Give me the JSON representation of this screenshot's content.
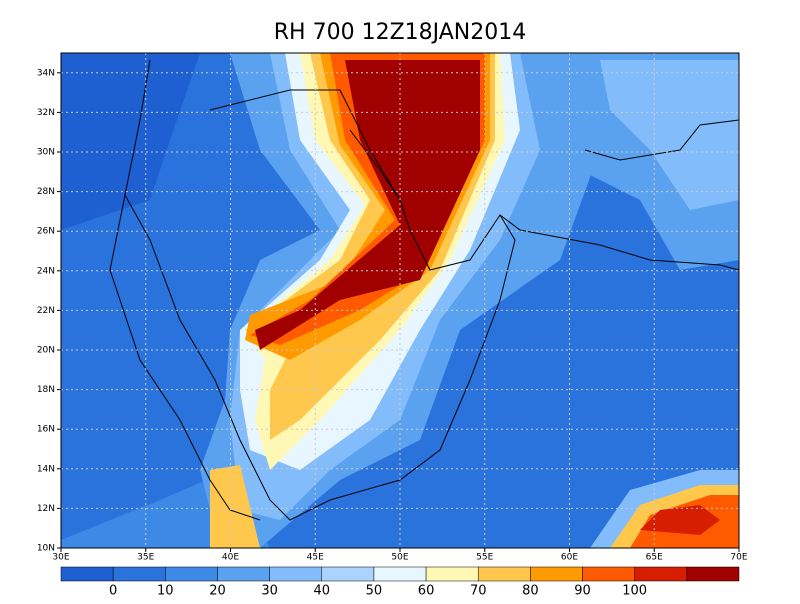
{
  "title": "RH 700 12Z18JAN2014",
  "map": {
    "xlim": [
      30,
      70
    ],
    "ylim": [
      10,
      35
    ],
    "xticks": [
      {
        "value": 30,
        "label": "30E"
      },
      {
        "value": 35,
        "label": "35E"
      },
      {
        "value": 40,
        "label": "40E"
      },
      {
        "value": 45,
        "label": "45E"
      },
      {
        "value": 50,
        "label": "50E"
      },
      {
        "value": 55,
        "label": "55E"
      },
      {
        "value": 60,
        "label": "60E"
      },
      {
        "value": 65,
        "label": "65E"
      },
      {
        "value": 70,
        "label": "70E"
      }
    ],
    "yticks": [
      {
        "value": 10,
        "label": "10N"
      },
      {
        "value": 12,
        "label": "12N"
      },
      {
        "value": 14,
        "label": "14N"
      },
      {
        "value": 16,
        "label": "16N"
      },
      {
        "value": 18,
        "label": "18N"
      },
      {
        "value": 20,
        "label": "20N"
      },
      {
        "value": 22,
        "label": "22N"
      },
      {
        "value": 24,
        "label": "24N"
      },
      {
        "value": 26,
        "label": "26N"
      },
      {
        "value": 28,
        "label": "28N"
      },
      {
        "value": 30,
        "label": "30N"
      },
      {
        "value": 32,
        "label": "32N"
      },
      {
        "value": 34,
        "label": "34N"
      }
    ],
    "grid": true
  },
  "colorbar": {
    "colors": [
      "#1e5fd2",
      "#2a73dc",
      "#3c8ae6",
      "#5aa2f0",
      "#82bcfa",
      "#aad4ff",
      "#e8f6ff",
      "#fff8b4",
      "#ffc84c",
      "#ff9a00",
      "#ff5a00",
      "#d81e00",
      "#a00000"
    ],
    "labels": [
      0,
      10,
      20,
      30,
      40,
      50,
      60,
      70,
      80,
      90,
      100
    ]
  }
}
